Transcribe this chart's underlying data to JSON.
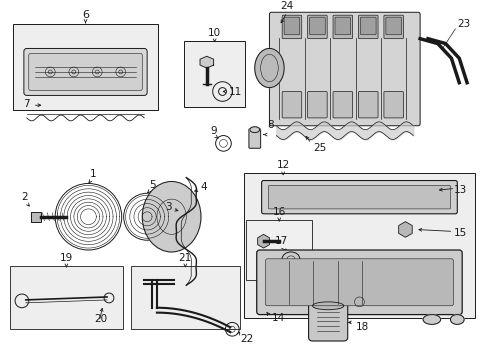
{
  "bg_color": "#ffffff",
  "lc": "#1a1a1a",
  "fill_light": "#e8e8e8",
  "fill_white": "#ffffff",
  "fill_box": "#eeeeee",
  "lw_main": 0.7,
  "lw_thin": 0.4,
  "fs_label": 7.5
}
